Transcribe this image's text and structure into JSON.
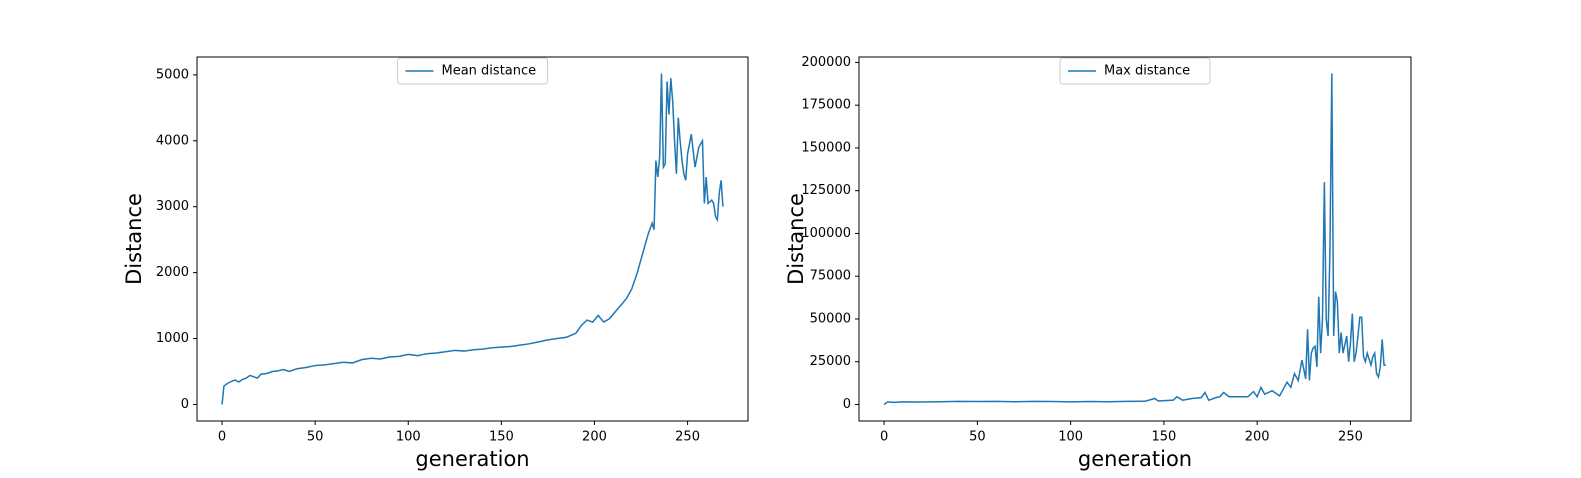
{
  "chart_data": [
    {
      "type": "line",
      "ylabel": "Distance",
      "xlabel": "generation",
      "legend": "upper center",
      "series": [
        {
          "name": "Mean distance",
          "color": "#1f77b4",
          "x": [
            0,
            1,
            3,
            5,
            7,
            9,
            11,
            13,
            15,
            17,
            19,
            21,
            24,
            27,
            30,
            33,
            36,
            40,
            45,
            50,
            55,
            60,
            65,
            70,
            75,
            80,
            85,
            90,
            95,
            100,
            105,
            110,
            115,
            120,
            125,
            130,
            135,
            140,
            145,
            150,
            155,
            160,
            165,
            170,
            175,
            180,
            185,
            190,
            193,
            196,
            199,
            202,
            205,
            208,
            211,
            214,
            217,
            220,
            223,
            226,
            229,
            231,
            232,
            233,
            234,
            235,
            236,
            237,
            238,
            239,
            240,
            241,
            242,
            243,
            244,
            245,
            246,
            247,
            248,
            249,
            250,
            252,
            254,
            256,
            258,
            259,
            260,
            261,
            263,
            264,
            265,
            266,
            267,
            268,
            269
          ],
          "values": [
            0,
            280,
            320,
            350,
            370,
            340,
            380,
            400,
            440,
            420,
            400,
            460,
            470,
            500,
            510,
            530,
            500,
            540,
            560,
            590,
            600,
            620,
            640,
            630,
            680,
            700,
            690,
            720,
            730,
            760,
            740,
            770,
            780,
            800,
            820,
            810,
            830,
            840,
            860,
            870,
            880,
            900,
            920,
            950,
            980,
            1000,
            1020,
            1080,
            1200,
            1280,
            1250,
            1350,
            1250,
            1300,
            1400,
            1500,
            1600,
            1750,
            2000,
            2300,
            2600,
            2750,
            2650,
            3700,
            3450,
            3750,
            5020,
            3600,
            3650,
            4900,
            4400,
            4950,
            4600,
            4000,
            3500,
            4350,
            4000,
            3700,
            3500,
            3400,
            3800,
            4100,
            3600,
            3900,
            4000,
            3050,
            3450,
            3050,
            3100,
            3050,
            2850,
            2800,
            3200,
            3400,
            3000
          ]
        }
      ],
      "xlim": [
        -13.45,
        282.45
      ],
      "xticks": [
        0,
        50,
        100,
        150,
        200,
        250
      ],
      "ylim": [
        -251,
        5271
      ],
      "yticks": [
        0,
        1000,
        2000,
        3000,
        4000,
        5000
      ]
    },
    {
      "type": "line",
      "ylabel": "Distance",
      "xlabel": "generation",
      "legend": "upper center",
      "series": [
        {
          "name": "Max distance",
          "color": "#1f77b4",
          "x": [
            0,
            2,
            5,
            10,
            20,
            30,
            40,
            50,
            60,
            70,
            80,
            90,
            100,
            110,
            120,
            130,
            140,
            145,
            147,
            155,
            157,
            160,
            165,
            170,
            172,
            174,
            178,
            180,
            182,
            185,
            195,
            198,
            200,
            202,
            204,
            208,
            212,
            214,
            216,
            218,
            220,
            222,
            224,
            226,
            227,
            228,
            229,
            230,
            231,
            232,
            233,
            234,
            235,
            236,
            237,
            238,
            239,
            240,
            241,
            242,
            243,
            244,
            245,
            246,
            247,
            248,
            249,
            250,
            251,
            252,
            253,
            254,
            255,
            256,
            257,
            258,
            259,
            261,
            262,
            263,
            264,
            265,
            266,
            267,
            268,
            269
          ],
          "values": [
            0,
            1500,
            1200,
            1500,
            1400,
            1600,
            1800,
            1700,
            1800,
            1600,
            1800,
            1700,
            1500,
            1700,
            1600,
            1800,
            1900,
            3500,
            2000,
            2500,
            4500,
            2500,
            3500,
            4000,
            7000,
            2500,
            4000,
            4500,
            7000,
            4500,
            4500,
            7500,
            4500,
            10000,
            6000,
            8000,
            5000,
            9000,
            13000,
            10000,
            18000,
            14000,
            26000,
            15000,
            44000,
            14000,
            30000,
            33000,
            34000,
            22000,
            63000,
            30000,
            50000,
            130000,
            50000,
            40000,
            90000,
            193500,
            40000,
            66000,
            60000,
            30000,
            42000,
            30000,
            35000,
            40000,
            25000,
            36000,
            53000,
            25000,
            30000,
            40000,
            51000,
            51000,
            28000,
            25000,
            30000,
            23000,
            28000,
            30000,
            18000,
            16000,
            22000,
            38000,
            23000,
            23000
          ]
        }
      ],
      "xlim": [
        -13.45,
        282.45
      ],
      "xticks": [
        0,
        50,
        100,
        150,
        200,
        250
      ],
      "ylim": [
        -9675,
        203175
      ],
      "yticks": [
        0,
        25000,
        50000,
        75000,
        100000,
        125000,
        150000,
        175000,
        200000
      ]
    }
  ]
}
